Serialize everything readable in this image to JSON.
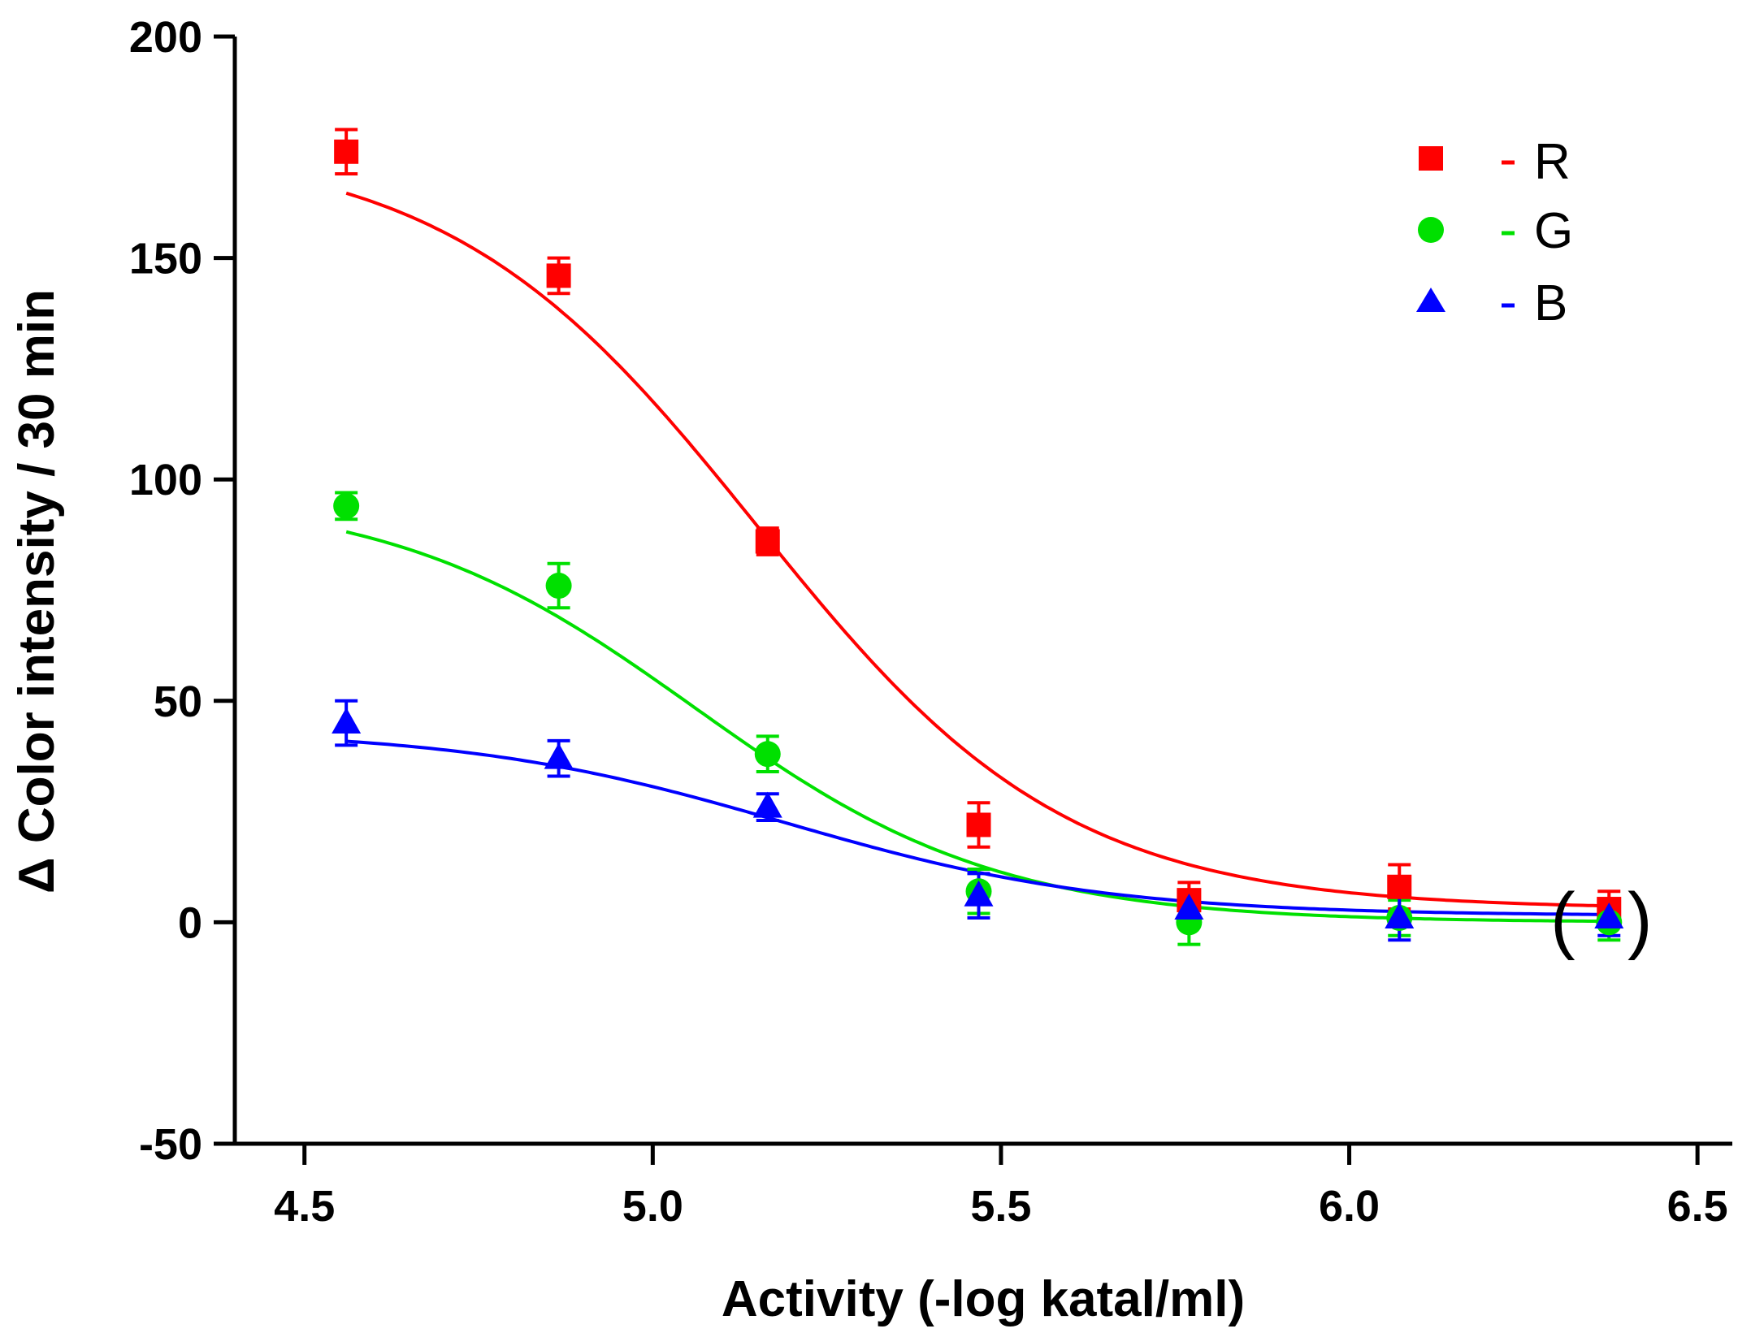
{
  "chart_data": {
    "type": "scatter",
    "title": "",
    "xlabel": "Activity (-log katal/ml)",
    "ylabel": "Δ Color intensity / 30 min",
    "xlim": [
      4.4,
      6.55
    ],
    "ylim": [
      -50,
      200
    ],
    "xticks": [
      4.5,
      5.0,
      5.5,
      6.0,
      6.5
    ],
    "xtick_labels": [
      "4.5",
      "5.0",
      "5.5",
      "6.0",
      "6.5"
    ],
    "yticks": [
      -50,
      0,
      50,
      100,
      150,
      200
    ],
    "ytick_labels": [
      "-50",
      "0",
      "50",
      "100",
      "150",
      "200"
    ],
    "grid": false,
    "legend": "top-right",
    "x": [
      4.56,
      4.865,
      5.165,
      5.468,
      5.77,
      6.072,
      6.373
    ],
    "series": [
      {
        "name": "R",
        "legend_label": "R",
        "color": "#ff0000",
        "marker": "square",
        "values": [
          174,
          146,
          86,
          22,
          5,
          8,
          3
        ],
        "errors": [
          5,
          4,
          3,
          5,
          4,
          5,
          4
        ],
        "fit": {
          "bottom": 3,
          "top": 176,
          "x0": 5.15,
          "slope": 4.5
        }
      },
      {
        "name": "G",
        "legend_label": "G",
        "color": "#00e000",
        "marker": "circle",
        "values": [
          94,
          76,
          38,
          7,
          0,
          1,
          0
        ],
        "errors": [
          3,
          5,
          4,
          5,
          5,
          4,
          4
        ],
        "fit": {
          "bottom": 0,
          "top": 97,
          "x0": 5.06,
          "slope": 4.6
        }
      },
      {
        "name": "B",
        "legend_label": "B",
        "color": "#0000ff",
        "marker": "triangle",
        "values": [
          45,
          37,
          26,
          6,
          3,
          1,
          1
        ],
        "errors": [
          5,
          4,
          3,
          5,
          3,
          5,
          4
        ],
        "fit": {
          "bottom": 1.5,
          "top": 43.5,
          "x0": 5.19,
          "slope": 4.3
        }
      }
    ],
    "annotation": {
      "left": "(",
      "right": ")"
    }
  },
  "legend": {
    "items": [
      {
        "label": "R",
        "color": "#ff0000",
        "marker": "square-icon"
      },
      {
        "label": "G",
        "color": "#00e000",
        "marker": "circle-icon"
      },
      {
        "label": "B",
        "color": "#0000ff",
        "marker": "triangle-icon"
      }
    ]
  }
}
